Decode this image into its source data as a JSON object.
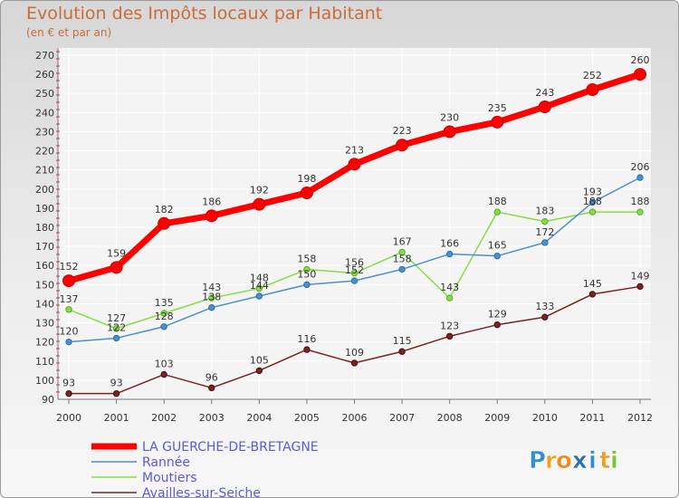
{
  "header": {
    "title": "Evolution des Impôts locaux par Habitant",
    "subtitle": "(en € et par an)"
  },
  "brand": {
    "letters": [
      "P",
      "r",
      "o",
      "x",
      "i",
      "t",
      "i"
    ],
    "colors": [
      "#2f8fd0",
      "#f0a020",
      "#f08a20",
      "#2e6fb0",
      "#2f8fd0",
      "#f0a020",
      "#7cc040"
    ]
  },
  "chart_data": {
    "type": "line",
    "x": [
      "2000",
      "2001",
      "2002",
      "2003",
      "2004",
      "2005",
      "2006",
      "2007",
      "2008",
      "2009",
      "2010",
      "2011",
      "2012"
    ],
    "ylim": [
      90,
      270
    ],
    "yticks": [
      90,
      100,
      110,
      120,
      130,
      140,
      150,
      160,
      170,
      180,
      190,
      200,
      210,
      220,
      230,
      240,
      250,
      260,
      270
    ],
    "grid": true,
    "legend_position": "bottom-left",
    "series": [
      {
        "name": "LA GUERCHE-DE-BRETAGNE",
        "color": "#ff0000",
        "values": [
          152,
          159,
          182,
          186,
          192,
          198,
          213,
          223,
          230,
          235,
          243,
          252,
          260
        ],
        "labels": [
          "152",
          "159",
          "182",
          "186",
          "192",
          "198",
          "213",
          "223",
          "230",
          "235",
          "243",
          "252",
          "260"
        ]
      },
      {
        "name": "Rannée",
        "color": "#4d8fcd",
        "values": [
          120,
          122,
          128,
          138,
          144,
          150,
          152,
          158,
          166,
          165,
          172,
          193,
          206
        ],
        "labels": [
          "120",
          "122",
          "128",
          "138",
          "144",
          "150",
          "152",
          "158",
          "166",
          "165",
          "172",
          "193",
          "206"
        ]
      },
      {
        "name": "Moutiers",
        "color": "#88dd44",
        "values": [
          137,
          127,
          135,
          143,
          148,
          158,
          156,
          167,
          143,
          188,
          183,
          188,
          188
        ],
        "labels": [
          "137",
          "127",
          "135",
          "143",
          "148",
          "158",
          "156",
          "167",
          "143",
          "188",
          "183",
          "188",
          "188"
        ]
      },
      {
        "name": "Availles-sur-Seiche",
        "color": "#7b2222",
        "values": [
          93,
          93,
          103,
          96,
          105,
          116,
          109,
          115,
          123,
          129,
          133,
          145,
          149
        ],
        "labels": [
          "93",
          "93",
          "103",
          "96",
          "105",
          "116",
          "109",
          "115",
          "123",
          "129",
          "133",
          "145",
          "149"
        ]
      }
    ]
  }
}
